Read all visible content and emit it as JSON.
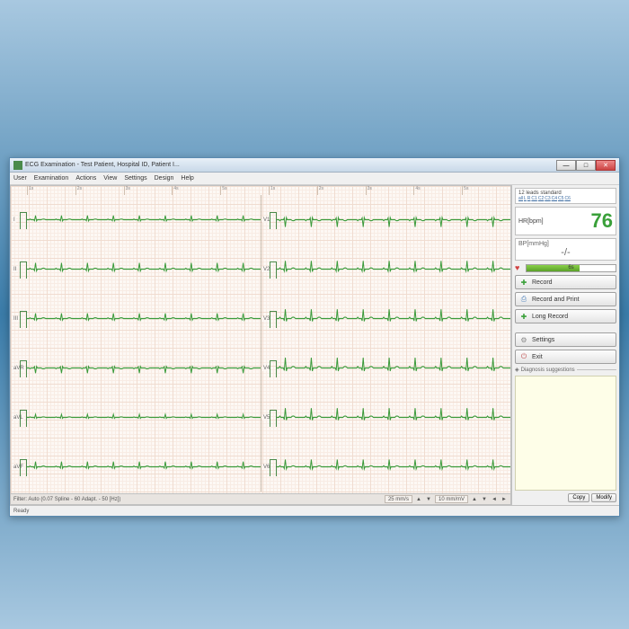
{
  "window": {
    "title": "ECG Examination - Test Patient, Hospital ID, Patient I...",
    "min": "—",
    "max": "□",
    "close": "✕"
  },
  "menu": {
    "items": [
      "User",
      "Examination",
      "Actions",
      "View",
      "Settings",
      "Design",
      "Help"
    ]
  },
  "ruler": {
    "ticks": [
      "1s",
      "2s",
      "3s",
      "4s",
      "5s",
      "1s",
      "2s",
      "3s",
      "4s",
      "5s"
    ]
  },
  "leads": {
    "left": [
      "I",
      "II",
      "III",
      "aVR",
      "aVL",
      "aVF"
    ],
    "right": [
      "V1",
      "V2",
      "V3",
      "V4",
      "V5",
      "V6"
    ]
  },
  "ecg_style": {
    "line_color": "#3a9a3a",
    "line_width": 1,
    "beats": 9,
    "amp": {
      "I": 4,
      "II": 6,
      "III": 5,
      "aVR": 5,
      "aVL": 3,
      "aVF": 5,
      "V1": 7,
      "V2": 8,
      "V3": 9,
      "V4": 10,
      "V5": 9,
      "V6": 7
    },
    "polarity": {
      "I": 1,
      "II": 1,
      "III": 1,
      "aVR": -1,
      "aVL": 1,
      "aVF": 1,
      "V1": -1,
      "V2": 1,
      "V3": 1,
      "V4": 1,
      "V5": 1,
      "V6": 1
    }
  },
  "bottom": {
    "filter": "Filter: Auto (0.07 Spline - 60 Adapt. - 50 [Hz])",
    "speed": "25 mm/s",
    "gain": "10 mm/mV"
  },
  "side": {
    "leads_std": "12 leads standard",
    "lead_links": [
      "all",
      "L",
      "R",
      "C1",
      "C2",
      "C3",
      "C4",
      "C5",
      "C6"
    ],
    "hr_label": "HR[bpm]",
    "hr_value": "76",
    "bp_label": "BP[mmHg]",
    "bp_value": "-/-",
    "progress_text": "6s",
    "progress_pct": 60,
    "buttons": {
      "record": "Record",
      "record_print": "Record and Print",
      "long_record": "Long Record",
      "settings": "Settings",
      "exit": "Exit"
    },
    "diag_label": "Diagnosis suggestions",
    "copy": "Copy",
    "modify": "Modify"
  },
  "status": "Ready",
  "colors": {
    "accent_green": "#3aa03a",
    "grid_major": "#f0dcd0",
    "grid_minor": "#f8ece4",
    "paper": "#fdf8f4"
  }
}
